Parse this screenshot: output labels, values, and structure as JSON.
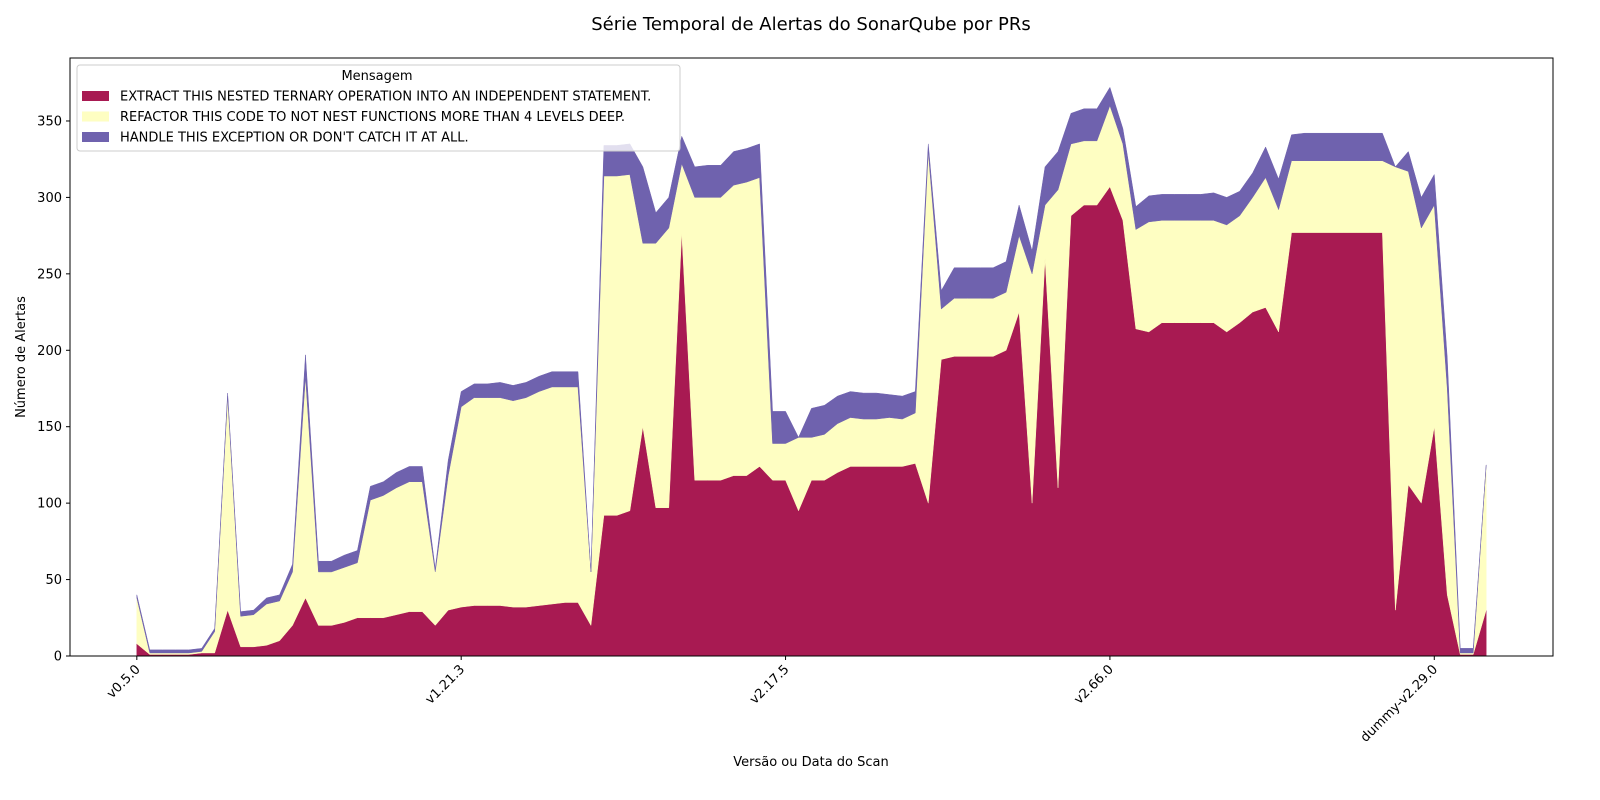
{
  "chart_data": {
    "type": "stacked_area",
    "title": "Série Temporal de Alertas do SonarQube por PRs",
    "x_label": "Versão ou Data do Scan",
    "y_label": "Número de Alertas",
    "legend_title": "Mensagem",
    "legend": "upper left",
    "categories": [
      "v0.5.0",
      null,
      null,
      null,
      null,
      null,
      null,
      null,
      null,
      null,
      null,
      null,
      null,
      null,
      null,
      null,
      null,
      null,
      null,
      null,
      null,
      null,
      null,
      null,
      null,
      "v1.21.3",
      null,
      null,
      null,
      null,
      null,
      null,
      null,
      null,
      null,
      null,
      null,
      null,
      null,
      null,
      null,
      null,
      null,
      null,
      null,
      null,
      null,
      null,
      null,
      null,
      "v2.17.5",
      null,
      null,
      null,
      null,
      null,
      null,
      null,
      null,
      null,
      null,
      null,
      null,
      null,
      null,
      null,
      null,
      null,
      null,
      null,
      null,
      null,
      null,
      null,
      null,
      "v2.66.0",
      null,
      null,
      null,
      null,
      null,
      null,
      null,
      null,
      null,
      null,
      null,
      null,
      null,
      null,
      null,
      null,
      null,
      null,
      null,
      null,
      null,
      null,
      null,
      null,
      "dummy-v2.29.0",
      null,
      null,
      null,
      null
    ],
    "series": [
      {
        "name": "EXTRACT THIS NESTED TERNARY OPERATION INTO AN INDEPENDENT STATEMENT.",
        "color": "#a81a52",
        "values": [
          8,
          1,
          1,
          1,
          1,
          2,
          2,
          30,
          6,
          6,
          7,
          10,
          20,
          38,
          20,
          20,
          22,
          25,
          25,
          25,
          27,
          29,
          29,
          20,
          30,
          32,
          33,
          33,
          33,
          32,
          32,
          33,
          34,
          35,
          35,
          20,
          92,
          92,
          95,
          150,
          97,
          97,
          277,
          115,
          115,
          115,
          118,
          118,
          124,
          115,
          115,
          95,
          115,
          115,
          120,
          124,
          124,
          124,
          124,
          124,
          126,
          100,
          194,
          196,
          196,
          196,
          196,
          200,
          225,
          100,
          260,
          110,
          288,
          295,
          295,
          307,
          285,
          214,
          212,
          218,
          218,
          218,
          218,
          218,
          212,
          218,
          225,
          228,
          212,
          277,
          277,
          277,
          277,
          277,
          277,
          277,
          277,
          30,
          112,
          100,
          150,
          40,
          1,
          1,
          30
        ]
      },
      {
        "name": "REFACTOR THIS CODE TO NOT NEST FUNCTIONS MORE THAN 4 LEVELS DEEP.",
        "color": "#fefec2",
        "values": [
          30,
          1,
          1,
          1,
          1,
          1,
          14,
          140,
          20,
          21,
          27,
          26,
          35,
          145,
          35,
          35,
          36,
          36,
          77,
          80,
          83,
          85,
          85,
          35,
          88,
          131,
          136,
          136,
          136,
          135,
          137,
          140,
          142,
          141,
          141,
          35,
          222,
          222,
          220,
          120,
          173,
          183,
          45,
          185,
          185,
          185,
          190,
          192,
          189,
          24,
          24,
          48,
          28,
          30,
          32,
          32,
          31,
          31,
          32,
          31,
          33,
          230,
          33,
          38,
          38,
          38,
          38,
          38,
          50,
          150,
          35,
          195,
          47,
          42,
          42,
          53,
          50,
          65,
          72,
          67,
          67,
          67,
          67,
          67,
          70,
          70,
          75,
          85,
          80,
          47,
          47,
          47,
          47,
          47,
          47,
          47,
          47,
          290,
          205,
          180,
          145,
          135,
          1,
          1,
          95
        ]
      },
      {
        "name": "HANDLE THIS EXCEPTION OR DON'T CATCH IT AT ALL.",
        "color": "#6f62ae",
        "values": [
          2,
          2,
          2,
          2,
          2,
          2,
          2,
          2,
          3,
          3,
          4,
          4,
          5,
          14,
          7,
          7,
          8,
          8,
          9,
          9,
          10,
          10,
          10,
          2,
          10,
          10,
          9,
          9,
          10,
          10,
          10,
          10,
          10,
          10,
          10,
          0,
          20,
          20,
          20,
          50,
          20,
          20,
          18,
          20,
          21,
          21,
          22,
          22,
          22,
          21,
          21,
          0,
          19,
          19,
          18,
          17,
          17,
          17,
          15,
          15,
          14,
          5,
          12,
          20,
          20,
          20,
          20,
          20,
          20,
          15,
          25,
          25,
          20,
          21,
          21,
          12,
          10,
          15,
          17,
          17,
          17,
          17,
          17,
          18,
          18,
          16,
          16,
          20,
          20,
          17,
          18,
          18,
          18,
          18,
          18,
          18,
          18,
          0,
          13,
          20,
          20,
          20,
          3,
          3,
          0
        ]
      }
    ],
    "ylim": [
      0,
      391.2
    ],
    "yticks": [
      0,
      50,
      100,
      150,
      200,
      250,
      300,
      350
    ]
  }
}
